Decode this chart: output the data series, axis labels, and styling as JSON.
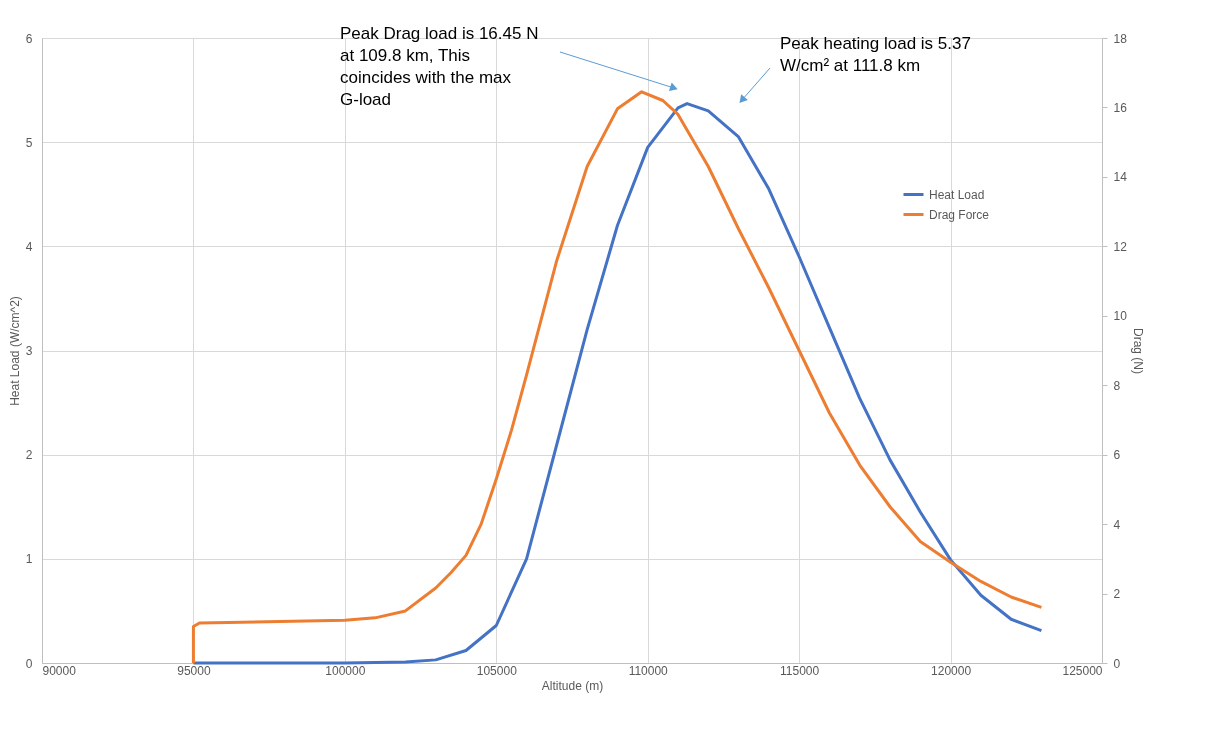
{
  "chart_data": {
    "type": "line",
    "xlabel": "Altitude (m)",
    "ylabel": "Heat Load (W/cm^2)",
    "y2label": "Drag  (N)",
    "xlim": [
      90000,
      125000
    ],
    "xticks": [
      90000,
      95000,
      100000,
      105000,
      110000,
      115000,
      120000,
      125000
    ],
    "ylim": [
      0,
      6
    ],
    "yticks": [
      0,
      1,
      2,
      3,
      4,
      5,
      6
    ],
    "y2lim": [
      0,
      18
    ],
    "y2ticks": [
      0,
      2,
      4,
      6,
      8,
      10,
      12,
      14,
      16,
      18
    ],
    "grid": true,
    "legend": "right",
    "marker": "none",
    "line_style": "solid",
    "annotations": [
      "Peak Drag load is 16.45 N at 109.8 km, This coincides with the max G-load",
      "Peak heating load is 5.37 W/cm² at 111.8 km"
    ],
    "series": [
      {
        "name": "Heat Load",
        "color": "#4472c4",
        "axis": "y",
        "x": [
          95000,
          100000,
          102000,
          103000,
          104000,
          105000,
          106000,
          107000,
          108000,
          109000,
          110000,
          111000,
          111300,
          112000,
          113000,
          114000,
          115000,
          116000,
          117000,
          118000,
          119000,
          120000,
          121000,
          122000,
          123000
        ],
        "values": [
          0,
          0,
          0.01,
          0.03,
          0.12,
          0.36,
          1.0,
          2.1,
          3.2,
          4.2,
          4.95,
          5.33,
          5.37,
          5.3,
          5.05,
          4.55,
          3.9,
          3.22,
          2.54,
          1.95,
          1.45,
          0.99,
          0.65,
          0.42,
          0.31
        ]
      },
      {
        "name": "Drag Force",
        "color": "#ed7d31",
        "axis": "y2",
        "x": [
          95000,
          95000,
          95200,
          100000,
          101000,
          102000,
          103000,
          103500,
          104000,
          104500,
          105000,
          105500,
          106000,
          107000,
          108000,
          109000,
          109800,
          110500,
          111000,
          112000,
          113000,
          114000,
          115000,
          116000,
          117000,
          118000,
          119000,
          120000,
          121000,
          122000,
          123000
        ],
        "values": [
          0,
          1.05,
          1.15,
          1.23,
          1.3,
          1.5,
          2.16,
          2.6,
          3.1,
          4.0,
          5.3,
          6.7,
          8.3,
          11.6,
          14.3,
          15.96,
          16.45,
          16.2,
          15.8,
          14.3,
          12.5,
          10.8,
          9.0,
          7.2,
          5.7,
          4.5,
          3.5,
          2.9,
          2.35,
          1.9,
          1.6
        ]
      }
    ]
  }
}
